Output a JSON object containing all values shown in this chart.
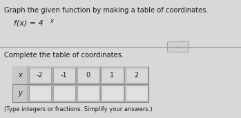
{
  "title_text": "Graph the given function by making a table of coordinates.",
  "function_label": "f(x) = 4",
  "function_exp": "x",
  "table_title": "Complete the table of coordinates.",
  "x_label": "x",
  "y_label": "y",
  "x_values": [
    "-2",
    "-1",
    "0",
    "1",
    "2"
  ],
  "footnote": "(Type integers or fractions. Simplify your answers.)",
  "bg_color": "#d8d8d8",
  "text_color": "#1a1a1a",
  "table_border_color": "#888888",
  "cell_white": "#e8e8e8",
  "header_bg": "#cccccc",
  "ellipsis_text": "...",
  "divider_color": "#999999"
}
